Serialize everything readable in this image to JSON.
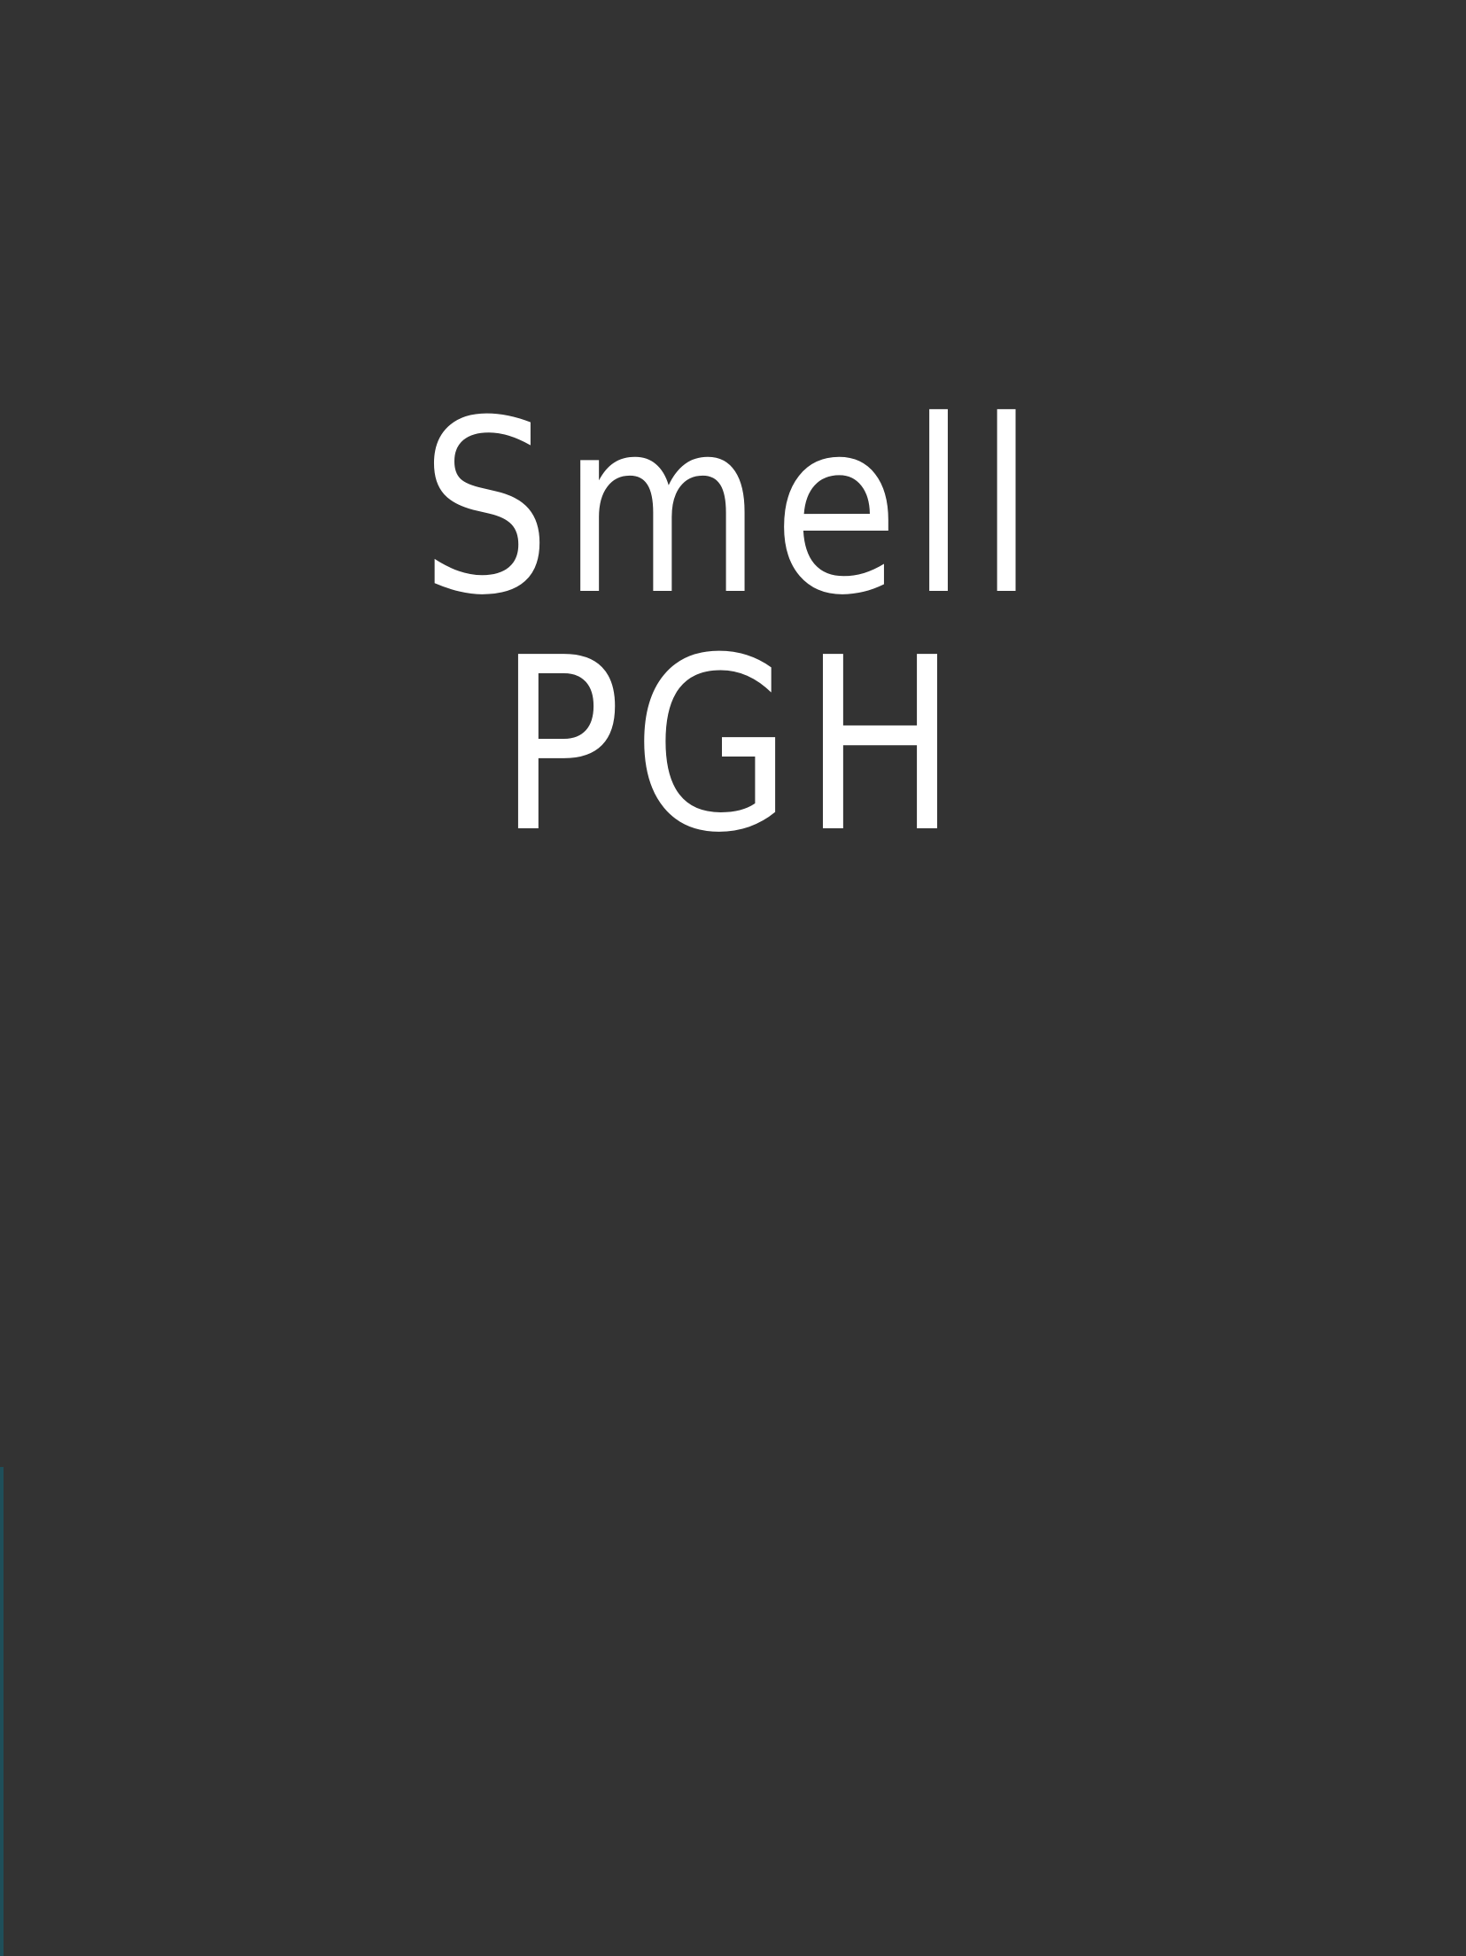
{
  "splash": {
    "title_line1": "Smell",
    "title_line2": "PGH"
  },
  "colors": {
    "background": "#333333",
    "title_text": "#ffffff",
    "edge_strip": "#1f4f5a"
  }
}
